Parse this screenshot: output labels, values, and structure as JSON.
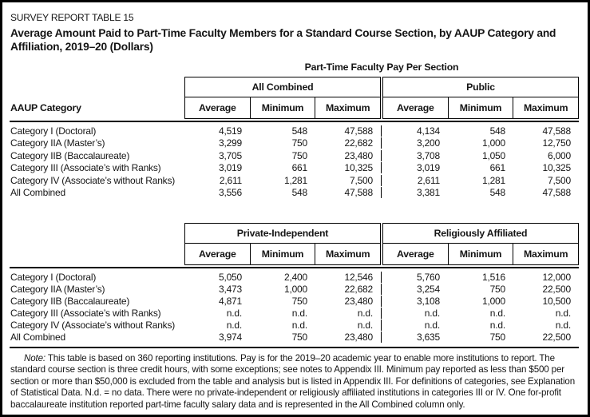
{
  "header": {
    "kicker": "SURVEY REPORT TABLE 15",
    "title": "Average Amount Paid to Part-Time Faculty Members for a Standard Course Section, by AAUP Category and Affiliation, 2019–20 (Dollars)",
    "span_label": "Part-Time Faculty Pay Per Section"
  },
  "row_label_header": "AAUP Category",
  "subheaders": [
    "Average",
    "Minimum",
    "Maximum"
  ],
  "tables": [
    {
      "groups": [
        "All Combined",
        "Public"
      ],
      "rows": [
        {
          "label": "Category I (Doctoral)",
          "values": [
            "4,519",
            "548",
            "47,588",
            "4,134",
            "548",
            "47,588"
          ]
        },
        {
          "label": "Category IIA (Master’s)",
          "values": [
            "3,299",
            "750",
            "22,682",
            "3,200",
            "1,000",
            "12,750"
          ]
        },
        {
          "label": "Category IIB (Baccalaureate)",
          "values": [
            "3,705",
            "750",
            "23,480",
            "3,708",
            "1,050",
            "6,000"
          ]
        },
        {
          "label": "Category III (Associate’s with Ranks)",
          "values": [
            "3,019",
            "661",
            "10,325",
            "3,019",
            "661",
            "10,325"
          ]
        },
        {
          "label": "Category IV (Associate’s without Ranks)",
          "values": [
            "2,611",
            "1,281",
            "7,500",
            "2,611",
            "1,281",
            "7,500"
          ]
        },
        {
          "label": "All Combined",
          "values": [
            "3,556",
            "548",
            "47,588",
            "3,381",
            "548",
            "47,588"
          ]
        }
      ]
    },
    {
      "groups": [
        "Private-Independent",
        "Religiously Affiliated"
      ],
      "rows": [
        {
          "label": "Category I (Doctoral)",
          "values": [
            "5,050",
            "2,400",
            "12,546",
            "5,760",
            "1,516",
            "12,000"
          ]
        },
        {
          "label": "Category IIA (Master’s)",
          "values": [
            "3,473",
            "1,000",
            "22,682",
            "3,254",
            "750",
            "22,500"
          ]
        },
        {
          "label": "Category IIB (Baccalaureate)",
          "values": [
            "4,871",
            "750",
            "23,480",
            "3,108",
            "1,000",
            "10,500"
          ]
        },
        {
          "label": "Category III (Associate’s with Ranks)",
          "values": [
            "n.d.",
            "n.d.",
            "n.d.",
            "n.d.",
            "n.d.",
            "n.d."
          ]
        },
        {
          "label": "Category IV (Associate’s without Ranks)",
          "values": [
            "n.d.",
            "n.d.",
            "n.d.",
            "n.d.",
            "n.d.",
            "n.d."
          ]
        },
        {
          "label": "All Combined",
          "values": [
            "3,974",
            "750",
            "23,480",
            "3,635",
            "750",
            "22,500"
          ]
        }
      ]
    }
  ],
  "note": {
    "label": "Note:",
    "text": " This table is based on 360 reporting institutions. Pay is for the 2019–20 academic year to enable more institutions to report. The standard course section is three credit hours, with some exceptions; see notes to Appendix III. Minimum pay reported as less than $500 per section or more than $50,000 is excluded from the table and analysis but is listed in Appendix III. For definitions of categories, see Explanation of Statistical Data. N.d. = no data. There were no private-independent or religiously affiliated institutions in categories III or IV. One for-profit baccalaureate institution reported part-time faculty salary data and is represented in the All Combined column only."
  },
  "colors": {
    "text": "#151515",
    "border": "#000000",
    "background": "#ffffff"
  }
}
